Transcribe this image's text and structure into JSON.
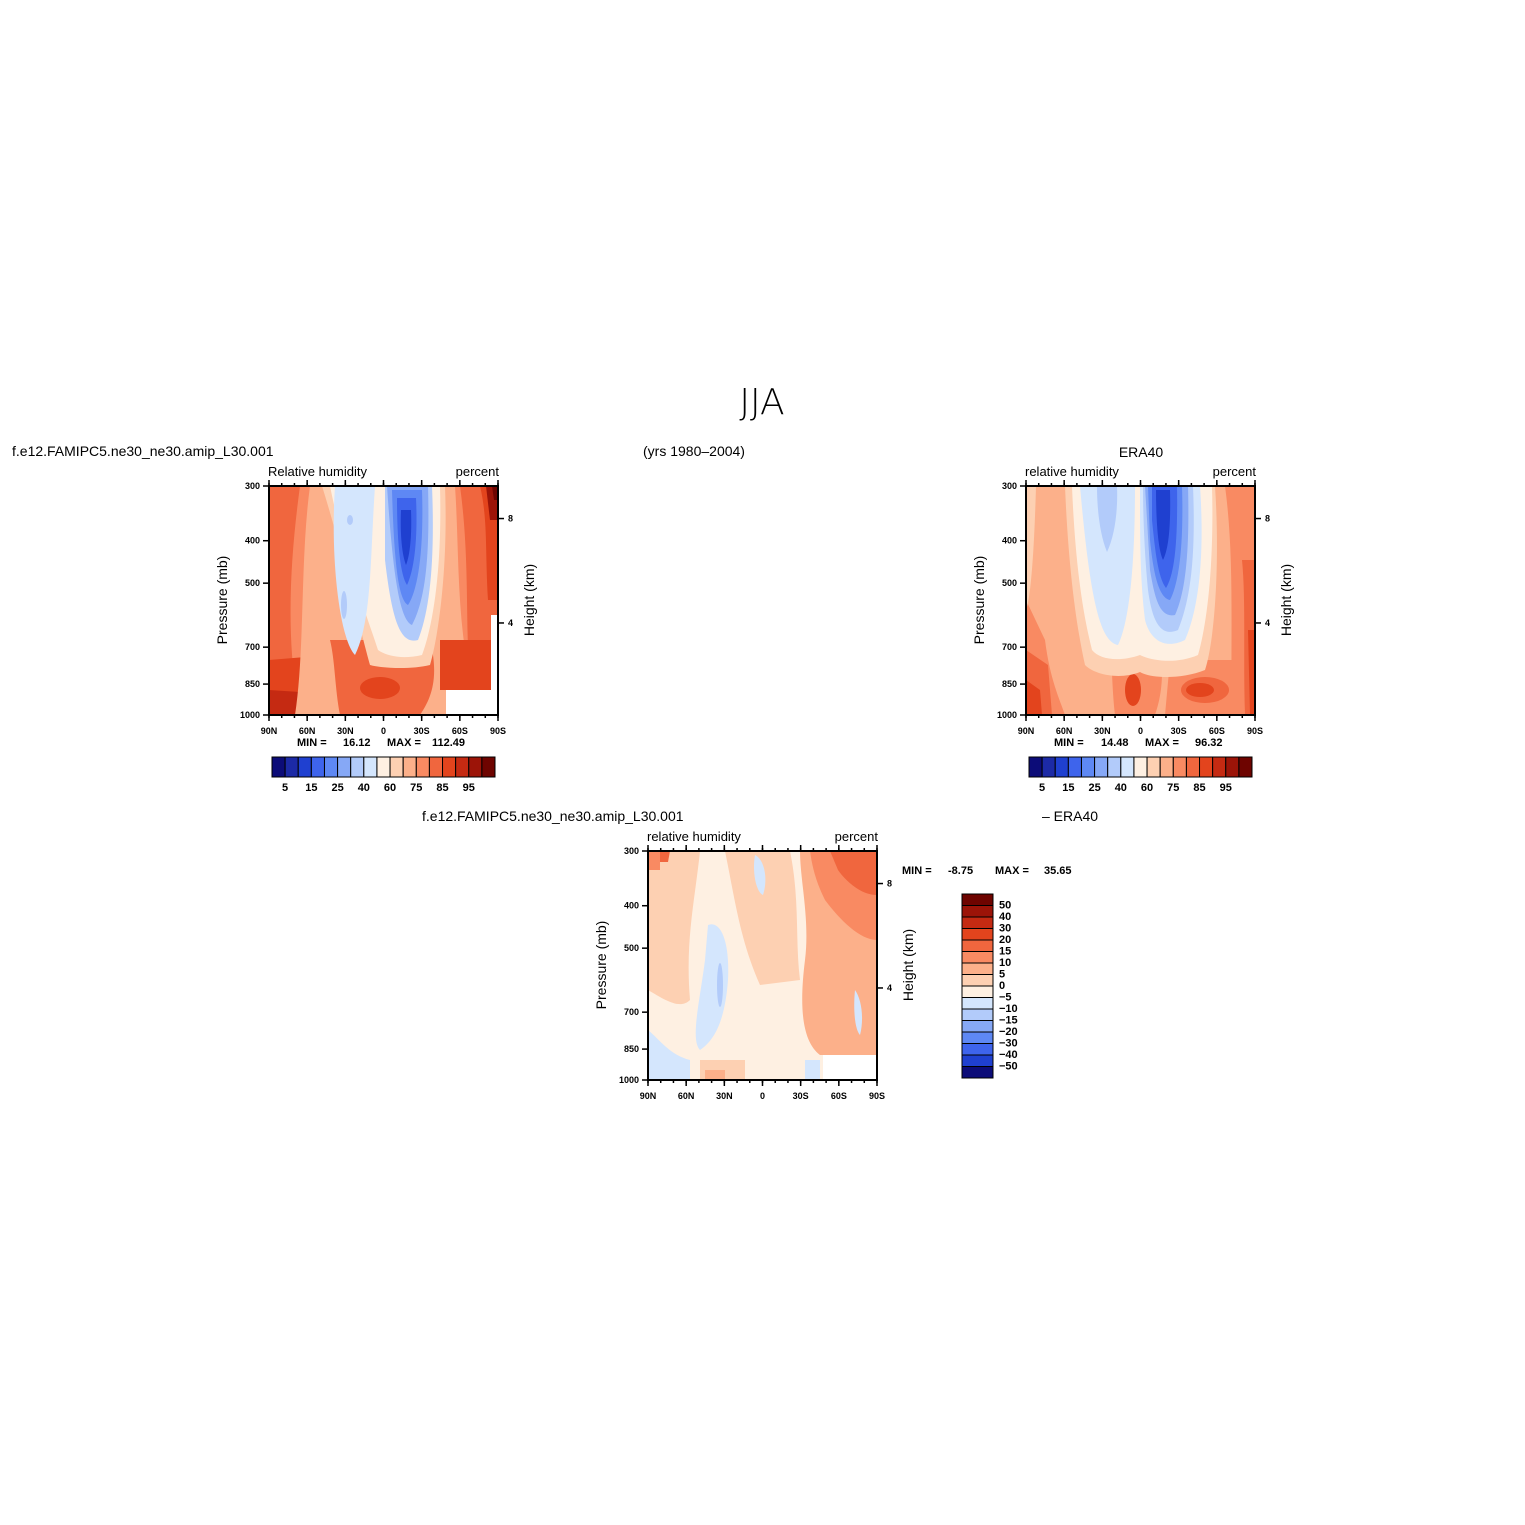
{
  "figure": {
    "title": "JJA",
    "case_name": "f.e12.FAMIPC5.ne30_ne30.amip_L30.001",
    "years": "(yrs 1980–2004)",
    "obs_name": "ERA40",
    "diff_case": "f.e12.FAMIPC5.ne30_ne30.amip_L30.001",
    "diff_obs": "– ERA40"
  },
  "chart_data": [
    {
      "type": "heatmap",
      "variable": "Relative humidity",
      "units": "percent",
      "xlabel": "",
      "ylabel": "Pressure (mb)",
      "y2label": "Height (km)",
      "x_ticks": [
        "90N",
        "60N",
        "30N",
        "0",
        "30S",
        "60S",
        "90S"
      ],
      "y_ticks": [
        300,
        400,
        500,
        700,
        850,
        1000
      ],
      "y2_ticks": [
        8,
        4
      ],
      "ylim": [
        1000,
        300
      ],
      "min_label": "MIN =",
      "min_value": "16.12",
      "max_label": "MAX =",
      "max_value": "112.49",
      "colorbar": {
        "orientation": "horizontal",
        "levels": [
          "5",
          "15",
          "25",
          "40",
          "60",
          "75",
          "85",
          "95"
        ],
        "colors": [
          "#0c0c78",
          "#1c2aa6",
          "#1f40d0",
          "#3e64ec",
          "#5e88f4",
          "#86a8f6",
          "#b2cbfa",
          "#d4e6fd",
          "#fef0e2",
          "#fdd0b2",
          "#fcb08a",
          "#f98a62",
          "#f0663e",
          "#e3441d",
          "#c52a12",
          "#9c1408",
          "#6e0400"
        ]
      }
    },
    {
      "type": "heatmap",
      "variable": "relative humidity",
      "units": "percent",
      "xlabel": "",
      "ylabel": "Pressure (mb)",
      "y2label": "Height (km)",
      "x_ticks": [
        "90N",
        "60N",
        "30N",
        "0",
        "30S",
        "60S",
        "90S"
      ],
      "y_ticks": [
        300,
        400,
        500,
        700,
        850,
        1000
      ],
      "y2_ticks": [
        8,
        4
      ],
      "ylim": [
        1000,
        300
      ],
      "min_label": "MIN =",
      "min_value": "14.48",
      "max_label": "MAX =",
      "max_value": "96.32",
      "colorbar": {
        "orientation": "horizontal",
        "levels": [
          "5",
          "15",
          "25",
          "40",
          "60",
          "75",
          "85",
          "95"
        ],
        "colors": [
          "#0c0c78",
          "#1c2aa6",
          "#1f40d0",
          "#3e64ec",
          "#5e88f4",
          "#86a8f6",
          "#b2cbfa",
          "#d4e6fd",
          "#fef0e2",
          "#fdd0b2",
          "#fcb08a",
          "#f98a62",
          "#f0663e",
          "#e3441d",
          "#c52a12",
          "#9c1408",
          "#6e0400"
        ]
      }
    },
    {
      "type": "heatmap",
      "variable": "relative humidity",
      "units": "percent",
      "xlabel": "",
      "ylabel": "Pressure (mb)",
      "y2label": "Height (km)",
      "x_ticks": [
        "90N",
        "60N",
        "30N",
        "0",
        "30S",
        "60S",
        "90S"
      ],
      "y_ticks": [
        300,
        400,
        500,
        700,
        850,
        1000
      ],
      "y2_ticks": [
        8,
        4
      ],
      "ylim": [
        1000,
        300
      ],
      "min_label": "MIN =",
      "min_value": "-8.75",
      "max_label": "MAX =",
      "max_value": "35.65",
      "colorbar": {
        "orientation": "vertical",
        "levels": [
          "50",
          "40",
          "30",
          "20",
          "15",
          "10",
          "5",
          "0",
          "−5",
          "−10",
          "−15",
          "−20",
          "−30",
          "−40",
          "−50"
        ],
        "colors": [
          "#6e0400",
          "#9c1408",
          "#c52a12",
          "#e3441d",
          "#f0663e",
          "#f98a62",
          "#fcb08a",
          "#fdd0b2",
          "#fef0e2",
          "#d4e6fd",
          "#b2cbfa",
          "#86a8f6",
          "#5e88f4",
          "#3e64ec",
          "#1f40d0",
          "#0c0c78"
        ]
      }
    }
  ]
}
